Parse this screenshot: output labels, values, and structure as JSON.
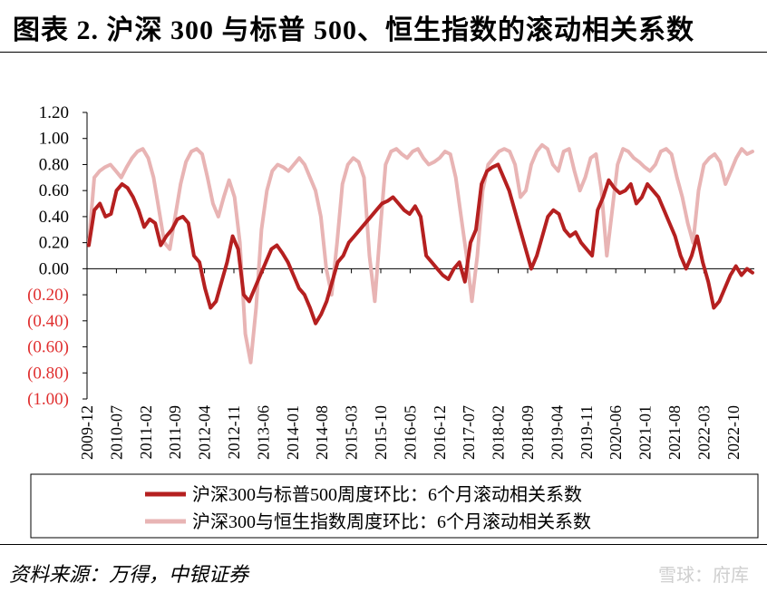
{
  "title": "图表 2. 沪深 300 与标普 500、恒生指数的滚动相关系数",
  "source": "资料来源：万得，中银证券",
  "watermark": "雪球：府库",
  "chart_data": {
    "type": "line",
    "title": "图表 2. 沪深 300 与标普 500、恒生指数的滚动相关系数",
    "xlabel": "",
    "ylabel": "",
    "ylim": [
      -1.0,
      1.2
    ],
    "grid": false,
    "legend_position": "bottom",
    "x_ticks": [
      "2009-12",
      "2010-07",
      "2011-02",
      "2011-09",
      "2012-04",
      "2012-11",
      "2013-06",
      "2014-01",
      "2014-08",
      "2015-03",
      "2015-10",
      "2016-05",
      "2016-12",
      "2017-07",
      "2018-02",
      "2018-09",
      "2019-04",
      "2019-11",
      "2020-06",
      "2021-01",
      "2021-08",
      "2022-03",
      "2022-10"
    ],
    "y_ticks": [
      "1.20",
      "1.00",
      "0.80",
      "0.60",
      "0.40",
      "0.20",
      "0.00",
      "(0.20)",
      "(0.40)",
      "(0.60)",
      "(0.80)",
      "(1.00)"
    ],
    "negative_tick_color": "#e03030",
    "series": [
      {
        "name": "沪深300与标普500周度环比：6个月滚动相关系数",
        "color": "#b52020",
        "values": [
          0.18,
          0.45,
          0.5,
          0.4,
          0.42,
          0.6,
          0.65,
          0.62,
          0.55,
          0.45,
          0.32,
          0.38,
          0.35,
          0.18,
          0.25,
          0.3,
          0.38,
          0.4,
          0.35,
          0.1,
          0.05,
          -0.15,
          -0.3,
          -0.25,
          -0.1,
          0.05,
          0.25,
          0.15,
          -0.2,
          -0.25,
          -0.15,
          -0.05,
          0.05,
          0.15,
          0.18,
          0.12,
          0.05,
          -0.05,
          -0.15,
          -0.2,
          -0.3,
          -0.42,
          -0.35,
          -0.25,
          -0.1,
          0.05,
          0.1,
          0.2,
          0.25,
          0.3,
          0.35,
          0.4,
          0.45,
          0.5,
          0.52,
          0.55,
          0.5,
          0.45,
          0.42,
          0.48,
          0.4,
          0.1,
          0.05,
          0.0,
          -0.05,
          -0.08,
          0.0,
          0.05,
          -0.1,
          0.2,
          0.3,
          0.65,
          0.75,
          0.78,
          0.8,
          0.7,
          0.6,
          0.45,
          0.3,
          0.15,
          0.0,
          0.1,
          0.25,
          0.4,
          0.45,
          0.42,
          0.3,
          0.25,
          0.28,
          0.2,
          0.15,
          0.1,
          0.45,
          0.55,
          0.68,
          0.62,
          0.58,
          0.6,
          0.65,
          0.5,
          0.55,
          0.65,
          0.6,
          0.55,
          0.45,
          0.35,
          0.25,
          0.1,
          0.0,
          0.1,
          0.25,
          0.05,
          -0.1,
          -0.3,
          -0.25,
          -0.15,
          -0.05,
          0.02,
          -0.05,
          0.0,
          -0.03
        ]
      },
      {
        "name": "沪深300与恒生指数周度环比：6个月滚动相关系数",
        "color": "#e8b4b4",
        "values": [
          0.2,
          0.7,
          0.75,
          0.78,
          0.8,
          0.75,
          0.7,
          0.78,
          0.85,
          0.9,
          0.92,
          0.85,
          0.7,
          0.45,
          0.2,
          0.15,
          0.4,
          0.65,
          0.82,
          0.9,
          0.92,
          0.88,
          0.7,
          0.5,
          0.4,
          0.55,
          0.68,
          0.55,
          0.2,
          -0.5,
          -0.72,
          -0.3,
          0.3,
          0.6,
          0.75,
          0.8,
          0.78,
          0.75,
          0.8,
          0.85,
          0.8,
          0.7,
          0.6,
          0.4,
          0.0,
          -0.2,
          0.2,
          0.65,
          0.8,
          0.85,
          0.82,
          0.7,
          0.1,
          -0.25,
          0.3,
          0.8,
          0.9,
          0.92,
          0.88,
          0.85,
          0.9,
          0.92,
          0.85,
          0.8,
          0.82,
          0.85,
          0.9,
          0.88,
          0.7,
          0.4,
          0.1,
          -0.25,
          0.1,
          0.6,
          0.8,
          0.85,
          0.9,
          0.92,
          0.9,
          0.8,
          0.55,
          0.6,
          0.8,
          0.9,
          0.95,
          0.92,
          0.8,
          0.75,
          0.9,
          0.92,
          0.75,
          0.6,
          0.7,
          0.85,
          0.88,
          0.6,
          0.1,
          0.45,
          0.8,
          0.92,
          0.9,
          0.85,
          0.82,
          0.78,
          0.75,
          0.8,
          0.9,
          0.92,
          0.88,
          0.7,
          0.55,
          0.35,
          0.2,
          0.6,
          0.8,
          0.85,
          0.88,
          0.82,
          0.65,
          0.75,
          0.85,
          0.92,
          0.88,
          0.9
        ]
      }
    ]
  }
}
